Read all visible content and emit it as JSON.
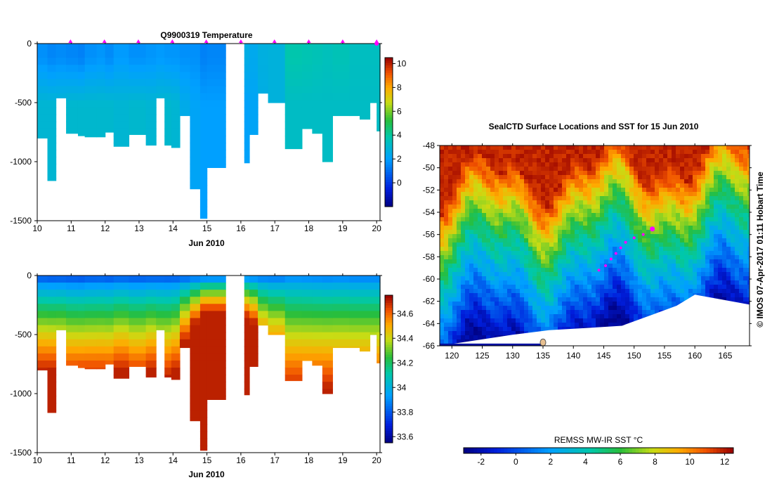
{
  "chart_data": [
    {
      "type": "heatmap",
      "title": "Q9900319  Temperature",
      "xlabel": "Jun 2010",
      "ylabel": "",
      "xlim": [
        10,
        20.1
      ],
      "ylim": [
        -1500,
        0
      ],
      "x_ticks": [
        "10",
        "11",
        "12",
        "13",
        "14",
        "15",
        "16",
        "17",
        "18",
        "19",
        "20"
      ],
      "y_ticks": [
        "0",
        "-500",
        "-1000",
        "-1500"
      ],
      "colorbar": {
        "min": -2,
        "max": 10.5,
        "ticks": [
          "10",
          "8",
          "6",
          "4",
          "2",
          "0"
        ]
      },
      "profile_markers_x": [
        10.98,
        11.98,
        12.98,
        13.98,
        14.98,
        16.0,
        16.99,
        18.0,
        19.0,
        20.0
      ],
      "profiles": [
        {
          "t0": 10.0,
          "t1": 10.3,
          "depth": 800,
          "surface": 1.7,
          "deep": 3.0
        },
        {
          "t0": 10.3,
          "t1": 10.55,
          "depth": 1160,
          "surface": 1.5,
          "deep": 3.0
        },
        {
          "t0": 10.55,
          "t1": 10.85,
          "depth": 460,
          "surface": 1.6,
          "deep": 3.0
        },
        {
          "t0": 10.85,
          "t1": 11.2,
          "depth": 760,
          "surface": 1.5,
          "deep": 3.1
        },
        {
          "t0": 11.2,
          "t1": 11.4,
          "depth": 780,
          "surface": 1.4,
          "deep": 3.1
        },
        {
          "t0": 11.4,
          "t1": 11.75,
          "depth": 790,
          "surface": 1.7,
          "deep": 3.1
        },
        {
          "t0": 11.75,
          "t1": 12.0,
          "depth": 790,
          "surface": 1.8,
          "deep": 3.1
        },
        {
          "t0": 12.0,
          "t1": 12.25,
          "depth": 750,
          "surface": 1.6,
          "deep": 3.1
        },
        {
          "t0": 12.25,
          "t1": 12.7,
          "depth": 870,
          "surface": 1.9,
          "deep": 3.0
        },
        {
          "t0": 12.7,
          "t1": 13.2,
          "depth": 770,
          "surface": 1.7,
          "deep": 3.1
        },
        {
          "t0": 13.2,
          "t1": 13.5,
          "depth": 860,
          "surface": 1.8,
          "deep": 3.0
        },
        {
          "t0": 13.5,
          "t1": 13.75,
          "depth": 460,
          "surface": 1.9,
          "deep": 3.1
        },
        {
          "t0": 13.75,
          "t1": 13.95,
          "depth": 860,
          "surface": 1.8,
          "deep": 3.1
        },
        {
          "t0": 13.95,
          "t1": 14.2,
          "depth": 880,
          "surface": 1.8,
          "deep": 3.0
        },
        {
          "t0": 14.2,
          "t1": 14.5,
          "depth": 610,
          "surface": 1.7,
          "deep": 2.5
        },
        {
          "t0": 14.5,
          "t1": 14.8,
          "depth": 1230,
          "surface": 1.7,
          "deep": 2.2
        },
        {
          "t0": 14.8,
          "t1": 15.0,
          "depth": 1480,
          "surface": 1.4,
          "deep": 2.0
        },
        {
          "t0": 15.0,
          "t1": 15.55,
          "depth": 1050,
          "surface": 1.5,
          "deep": 2.0
        },
        {
          "t0": 16.1,
          "t1": 16.25,
          "depth": 1010,
          "surface": 2.6,
          "deep": 2.1
        },
        {
          "t0": 16.25,
          "t1": 16.5,
          "depth": 770,
          "surface": 2.4,
          "deep": 2.2
        },
        {
          "t0": 16.5,
          "t1": 16.8,
          "depth": 420,
          "surface": 2.7,
          "deep": 2.6
        },
        {
          "t0": 16.8,
          "t1": 17.3,
          "depth": 500,
          "surface": 2.8,
          "deep": 2.8
        },
        {
          "t0": 17.3,
          "t1": 17.8,
          "depth": 890,
          "surface": 3.8,
          "deep": 3.3
        },
        {
          "t0": 17.8,
          "t1": 18.1,
          "depth": 720,
          "surface": 3.7,
          "deep": 3.3
        },
        {
          "t0": 18.1,
          "t1": 18.4,
          "depth": 760,
          "surface": 3.6,
          "deep": 3.3
        },
        {
          "t0": 18.4,
          "t1": 18.7,
          "depth": 1000,
          "surface": 3.5,
          "deep": 3.3
        },
        {
          "t0": 18.7,
          "t1": 19.2,
          "depth": 610,
          "surface": 3.6,
          "deep": 3.3
        },
        {
          "t0": 19.2,
          "t1": 19.5,
          "depth": 610,
          "surface": 3.4,
          "deep": 3.3
        },
        {
          "t0": 19.5,
          "t1": 19.8,
          "depth": 640,
          "surface": 3.4,
          "deep": 3.3
        },
        {
          "t0": 19.8,
          "t1": 20.0,
          "depth": 500,
          "surface": 3.4,
          "deep": 3.3
        },
        {
          "t0": 20.0,
          "t1": 20.1,
          "depth": 740,
          "surface": 3.4,
          "deep": 3.3
        }
      ]
    },
    {
      "type": "heatmap",
      "title": "",
      "xlabel": "Jun 2010",
      "ylabel": "",
      "xlim": [
        10,
        20.1
      ],
      "ylim": [
        -1500,
        0
      ],
      "x_ticks": [
        "10",
        "11",
        "12",
        "13",
        "14",
        "15",
        "16",
        "17",
        "18",
        "19",
        "20"
      ],
      "y_ticks": [
        "0",
        "-500",
        "-1000",
        "-1500"
      ],
      "colorbar": {
        "min": 33.55,
        "max": 34.75,
        "ticks": [
          "34.6",
          "34.4",
          "34.2",
          "34",
          "33.8",
          "33.6"
        ]
      },
      "profiles_same_as": "Q9900319  Temperature"
    },
    {
      "type": "heatmap",
      "title": "SealCTD Surface Locations and SST for 15 Jun 2010",
      "xlabel": "",
      "ylabel": "",
      "xlim": [
        118,
        169
      ],
      "ylim": [
        -66,
        -48
      ],
      "x_ticks": [
        "120",
        "125",
        "130",
        "135",
        "140",
        "145",
        "150",
        "155",
        "160",
        "165"
      ],
      "y_ticks": [
        "-48",
        "-50",
        "-52",
        "-54",
        "-56",
        "-58",
        "-60",
        "-62",
        "-64",
        "-66"
      ],
      "colorbar": {
        "label": "REMSS MW-IR SST °C",
        "min": -3,
        "max": 12.5,
        "ticks": [
          "-2",
          "0",
          "2",
          "4",
          "6",
          "8",
          "10",
          "12"
        ]
      },
      "seal_track": [
        {
          "lon": 153.0,
          "lat": -55.5
        },
        {
          "lon": 151.5,
          "lat": -56.0
        },
        {
          "lon": 150.0,
          "lat": -56.3
        },
        {
          "lon": 148.6,
          "lat": -56.7
        },
        {
          "lon": 147.8,
          "lat": -57.2
        },
        {
          "lon": 147.0,
          "lat": -57.7
        },
        {
          "lon": 146.2,
          "lat": -58.2
        },
        {
          "lon": 145.3,
          "lat": -58.8
        },
        {
          "lon": 144.2,
          "lat": -59.2
        }
      ],
      "latest_location": {
        "lon": 153.0,
        "lat": -55.5
      }
    }
  ],
  "side_label": "© IMOS 07-Apr-2017 01:11 Hobart Time",
  "colors": {
    "axis": "#000000",
    "marker": "#ff00ff",
    "missing": "#ffffff",
    "ice": "#ffffff",
    "land": "#e8c090"
  }
}
